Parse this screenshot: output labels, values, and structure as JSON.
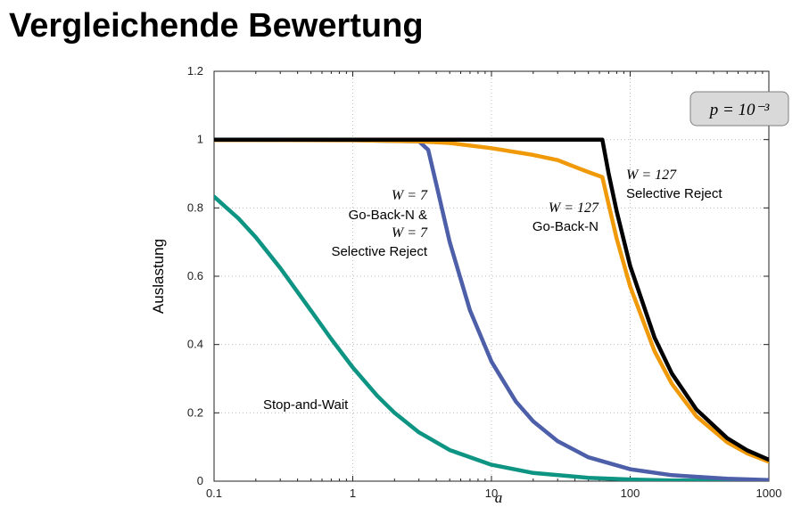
{
  "slide": {
    "title": "Vergleichende Bewertung"
  },
  "chart_data": {
    "type": "line",
    "xlabel": "a",
    "ylabel": "Auslastung",
    "xscale": "log",
    "xlim": [
      0.1,
      1000
    ],
    "ylim": [
      0,
      1.2
    ],
    "xticks": [
      "0.1",
      "1",
      "10",
      "100",
      "1000"
    ],
    "yticks": [
      "0",
      "0.2",
      "0.4",
      "0.6",
      "0.8",
      "1",
      "1.2"
    ],
    "grid": true,
    "parameter_box": "p = 10⁻³",
    "colors": {
      "swp": "#0e9482",
      "gbn7": "#4d5fa8",
      "gbn127": "#f09a0a",
      "sr127": "#000000"
    },
    "series": [
      {
        "key": "swp",
        "x": [
          0.1,
          0.15,
          0.2,
          0.3,
          0.5,
          0.7,
          1,
          1.5,
          2,
          3,
          5,
          10,
          20,
          50,
          100,
          200,
          500,
          1000
        ],
        "y": [
          0.833,
          0.769,
          0.714,
          0.624,
          0.499,
          0.416,
          0.333,
          0.25,
          0.2,
          0.143,
          0.091,
          0.048,
          0.024,
          0.01,
          0.005,
          0.002,
          0.001,
          0.0005
        ]
      },
      {
        "key": "gbn7",
        "x": [
          0.1,
          1,
          2,
          3,
          3.5,
          4,
          5,
          7,
          10,
          15,
          20,
          30,
          50,
          100,
          200,
          500,
          1000
        ],
        "y": [
          0.999,
          0.998,
          0.996,
          0.995,
          0.97,
          0.87,
          0.7,
          0.5,
          0.35,
          0.233,
          0.175,
          0.117,
          0.07,
          0.035,
          0.0175,
          0.007,
          0.0035
        ]
      },
      {
        "key": "gbn127",
        "x": [
          0.1,
          0.25,
          1,
          3,
          5,
          10,
          20,
          30,
          40,
          50,
          63,
          70,
          80,
          100,
          150,
          200,
          300,
          500,
          700,
          1000
        ],
        "y": [
          0.999,
          0.999,
          0.998,
          0.995,
          0.99,
          0.975,
          0.955,
          0.94,
          0.92,
          0.905,
          0.89,
          0.81,
          0.71,
          0.57,
          0.38,
          0.285,
          0.19,
          0.114,
          0.081,
          0.057
        ]
      },
      {
        "key": "sr127",
        "x": [
          0.1,
          1,
          10,
          40,
          63,
          70,
          80,
          100,
          150,
          200,
          300,
          500,
          700,
          1000
        ],
        "y": [
          1.0,
          1.0,
          1.0,
          1.0,
          1.0,
          0.9,
          0.79,
          0.63,
          0.42,
          0.315,
          0.21,
          0.126,
          0.09,
          0.063
        ]
      }
    ],
    "annotations": {
      "stop_and_wait": "Stop-and-Wait",
      "gbn7_w": "W = 7",
      "gbn7_name": "Go-Back-N &",
      "sr7_w": "W = 7",
      "sr7_name": "Selective Reject",
      "gbn127_w": "W = 127",
      "gbn127_name": "Go-Back-N",
      "sr127_w": "W = 127",
      "sr127_name": "Selective Reject"
    }
  }
}
